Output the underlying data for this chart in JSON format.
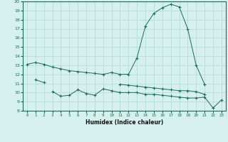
{
  "xlabel": "Humidex (Indice chaleur)",
  "x": [
    0,
    1,
    2,
    3,
    4,
    5,
    6,
    7,
    8,
    9,
    10,
    11,
    12,
    13,
    14,
    15,
    16,
    17,
    18,
    19,
    20,
    21,
    22,
    23
  ],
  "line1": [
    13.1,
    13.3,
    13.1,
    12.8,
    12.6,
    12.4,
    12.3,
    12.2,
    12.1,
    12.0,
    12.2,
    12.0,
    12.0,
    13.8,
    17.3,
    18.7,
    19.3,
    19.7,
    19.4,
    17.0,
    13.0,
    10.9,
    null,
    null
  ],
  "line2": [
    null,
    null,
    null,
    10.1,
    9.6,
    9.7,
    10.3,
    9.9,
    9.7,
    10.4,
    10.2,
    10.0,
    10.0,
    10.0,
    9.8,
    9.8,
    9.7,
    9.6,
    9.5,
    9.4,
    9.4,
    9.5,
    8.3,
    9.2
  ],
  "line3": [
    null,
    11.4,
    11.1,
    null,
    null,
    null,
    null,
    null,
    null,
    null,
    null,
    10.9,
    10.8,
    10.7,
    10.6,
    10.5,
    10.4,
    10.3,
    10.2,
    10.2,
    10.1,
    9.8,
    null,
    null
  ],
  "ylim": [
    8,
    20
  ],
  "yticks": [
    8,
    9,
    10,
    11,
    12,
    13,
    14,
    15,
    16,
    17,
    18,
    19,
    20
  ],
  "line_color": "#1a6b5e",
  "bg_color": "#d6f0ee",
  "grid_color": "#b0d8d4",
  "figsize": [
    3.2,
    2.0
  ],
  "dpi": 100
}
